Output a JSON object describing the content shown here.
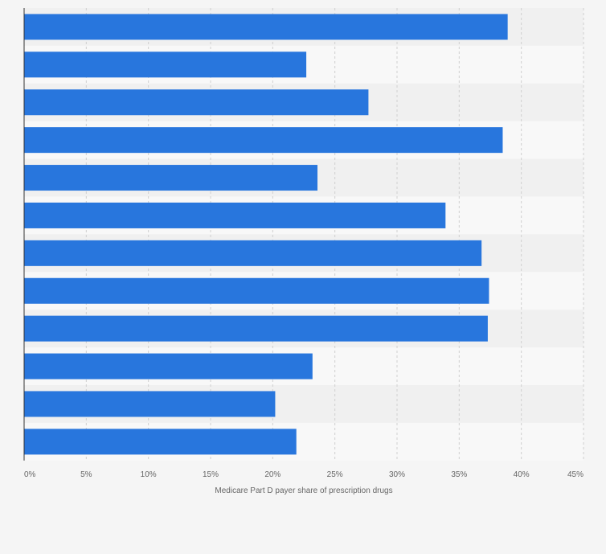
{
  "chart_data": {
    "type": "bar",
    "orientation": "horizontal",
    "title": "",
    "xlabel": "Medicare Part D payer share of prescription drugs",
    "ylabel": "",
    "xlim": [
      0,
      45
    ],
    "xticks": [
      0,
      5,
      10,
      15,
      20,
      25,
      30,
      35,
      40,
      45
    ],
    "xtick_labels": [
      "0%",
      "5%",
      "10%",
      "15%",
      "20%",
      "25%",
      "30%",
      "35%",
      "40%",
      "45%"
    ],
    "categories": [
      "",
      "",
      "",
      "",
      "",
      "",
      "",
      "",
      "",
      "",
      "",
      ""
    ],
    "values": [
      38.9,
      22.7,
      27.7,
      38.5,
      23.6,
      33.9,
      36.8,
      37.4,
      37.3,
      23.2,
      20.2,
      21.9
    ],
    "grid": true,
    "colors": {
      "bar": "#2876dd",
      "background": "#f5f5f5",
      "band_dark": "#f0f0f0",
      "band_light": "#f8f8f8",
      "grid": "#d0d0d0",
      "axis": "#333333",
      "text": "#666666"
    }
  }
}
